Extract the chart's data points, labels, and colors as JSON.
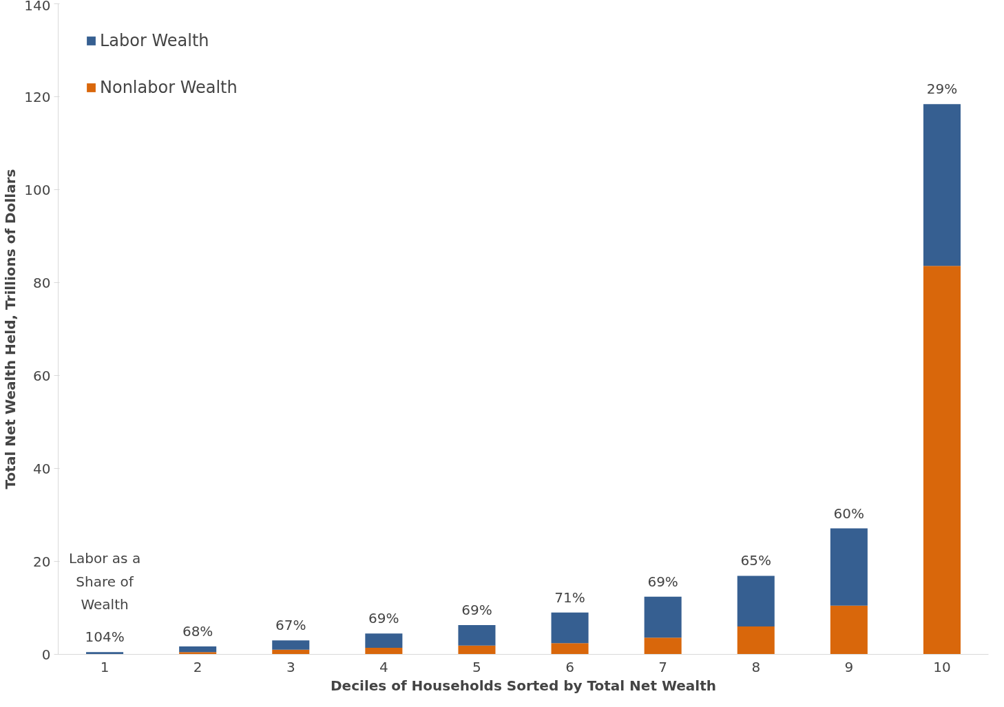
{
  "chart_data": {
    "type": "bar",
    "stacked": true,
    "xlabel": "Deciles of Households Sorted by Total Net Wealth",
    "ylabel": "Total Net Wealth Held, Trillions of Dollars",
    "categories": [
      "1",
      "2",
      "3",
      "4",
      "5",
      "6",
      "7",
      "8",
      "9",
      "10"
    ],
    "series": [
      {
        "name": "Nonlabor Wealth",
        "color": "#d9670b",
        "values": [
          0,
          0.5,
          1.0,
          1.4,
          1.9,
          2.4,
          3.6,
          6.0,
          10.5,
          83.6
        ]
      },
      {
        "name": "Labor Wealth",
        "color": "#365f91",
        "values": [
          0.5,
          1.2,
          2.0,
          3.1,
          4.4,
          6.6,
          8.8,
          10.9,
          16.6,
          34.8
        ]
      }
    ],
    "ylim": [
      0,
      140
    ],
    "yticks": [
      0,
      20,
      40,
      60,
      80,
      100,
      120,
      140
    ],
    "grid": false,
    "legend": "top left",
    "annotations": [
      "Labor as a Share of Wealth",
      {
        "text": "104%",
        "x": "1",
        "y": 0.5
      },
      {
        "text": "68%",
        "x": "2",
        "y": 1.7
      },
      {
        "text": "67%",
        "x": "3",
        "y": 3.0
      },
      {
        "text": "69%",
        "x": "4",
        "y": 4.5
      },
      {
        "text": "69%",
        "x": "5",
        "y": 6.3
      },
      {
        "text": "71%",
        "x": "6",
        "y": 9.0
      },
      {
        "text": "69%",
        "x": "7",
        "y": 12.4
      },
      {
        "text": "65%",
        "x": "8",
        "y": 16.9
      },
      {
        "text": "60%",
        "x": "9",
        "y": 27.1
      },
      {
        "text": "29%",
        "x": "10",
        "y": 118.4
      }
    ]
  }
}
